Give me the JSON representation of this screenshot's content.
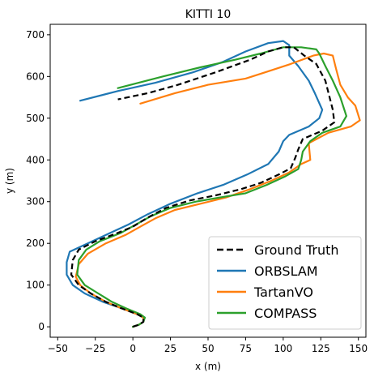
{
  "chart_data": {
    "type": "line",
    "title": "KITTI 10",
    "xlabel": "x (m)",
    "ylabel": "y (m)",
    "xlim": [
      -55,
      155
    ],
    "ylim": [
      -25,
      725
    ],
    "xticks": [
      -50,
      -25,
      0,
      25,
      50,
      75,
      100,
      125,
      150
    ],
    "yticks": [
      0,
      100,
      200,
      300,
      400,
      500,
      600,
      700
    ],
    "xtick_labels": [
      "−50",
      "−25",
      "0",
      "25",
      "50",
      "75",
      "100",
      "125",
      "150"
    ],
    "ytick_labels": [
      "0",
      "100",
      "200",
      "300",
      "400",
      "500",
      "600",
      "700"
    ],
    "grid": false,
    "legend_position": "lower-right",
    "series": [
      {
        "name": "Ground Truth",
        "color": "#000000",
        "style": "dashed",
        "points": [
          [
            0,
            0
          ],
          [
            4,
            5
          ],
          [
            7,
            12
          ],
          [
            7,
            22
          ],
          [
            3,
            30
          ],
          [
            -8,
            45
          ],
          [
            -18,
            60
          ],
          [
            -28,
            80
          ],
          [
            -36,
            100
          ],
          [
            -41,
            125
          ],
          [
            -40,
            160
          ],
          [
            -36,
            185
          ],
          [
            -25,
            205
          ],
          [
            -10,
            225
          ],
          [
            0,
            240
          ],
          [
            10,
            262
          ],
          [
            22,
            285
          ],
          [
            38,
            303
          ],
          [
            55,
            315
          ],
          [
            72,
            330
          ],
          [
            85,
            345
          ],
          [
            97,
            365
          ],
          [
            105,
            380
          ],
          [
            108,
            405
          ],
          [
            110,
            425
          ],
          [
            113,
            450
          ],
          [
            126,
            470
          ],
          [
            134,
            490
          ],
          [
            133,
            520
          ],
          [
            128,
            590
          ],
          [
            122,
            630
          ],
          [
            114,
            650
          ],
          [
            107,
            670
          ],
          [
            100,
            670
          ],
          [
            90,
            660
          ],
          [
            78,
            640
          ],
          [
            55,
            610
          ],
          [
            30,
            580
          ],
          [
            10,
            560
          ],
          [
            -10,
            545
          ]
        ]
      },
      {
        "name": "ORBSLAM",
        "color": "#1f77b4",
        "style": "solid",
        "points": [
          [
            0,
            0
          ],
          [
            4,
            5
          ],
          [
            7,
            12
          ],
          [
            7,
            22
          ],
          [
            3,
            30
          ],
          [
            -8,
            45
          ],
          [
            -20,
            60
          ],
          [
            -32,
            80
          ],
          [
            -40,
            100
          ],
          [
            -44,
            125
          ],
          [
            -44,
            155
          ],
          [
            -42,
            180
          ],
          [
            -30,
            200
          ],
          [
            -15,
            225
          ],
          [
            -3,
            245
          ],
          [
            10,
            270
          ],
          [
            25,
            295
          ],
          [
            43,
            320
          ],
          [
            60,
            340
          ],
          [
            76,
            365
          ],
          [
            90,
            390
          ],
          [
            97,
            420
          ],
          [
            100,
            445
          ],
          [
            104,
            460
          ],
          [
            117,
            480
          ],
          [
            124,
            500
          ],
          [
            126,
            520
          ],
          [
            121,
            560
          ],
          [
            117,
            590
          ],
          [
            110,
            625
          ],
          [
            104,
            650
          ],
          [
            104,
            675
          ],
          [
            100,
            685
          ],
          [
            90,
            680
          ],
          [
            75,
            660
          ],
          [
            60,
            635
          ],
          [
            40,
            610
          ],
          [
            15,
            585
          ],
          [
            -10,
            565
          ],
          [
            -35,
            542
          ]
        ]
      },
      {
        "name": "TartanVO",
        "color": "#ff7f0e",
        "style": "solid",
        "points": [
          [
            0,
            0
          ],
          [
            4,
            5
          ],
          [
            7,
            12
          ],
          [
            7,
            22
          ],
          [
            3,
            30
          ],
          [
            -8,
            45
          ],
          [
            -18,
            60
          ],
          [
            -28,
            80
          ],
          [
            -35,
            100
          ],
          [
            -38,
            120
          ],
          [
            -36,
            150
          ],
          [
            -30,
            175
          ],
          [
            -18,
            200
          ],
          [
            -5,
            220
          ],
          [
            5,
            240
          ],
          [
            15,
            260
          ],
          [
            28,
            280
          ],
          [
            45,
            295
          ],
          [
            62,
            310
          ],
          [
            78,
            330
          ],
          [
            92,
            350
          ],
          [
            104,
            370
          ],
          [
            112,
            390
          ],
          [
            118,
            400
          ],
          [
            117,
            440
          ],
          [
            130,
            465
          ],
          [
            145,
            480
          ],
          [
            151,
            495
          ],
          [
            148,
            530
          ],
          [
            143,
            550
          ],
          [
            138,
            580
          ],
          [
            135,
            620
          ],
          [
            133,
            650
          ],
          [
            127,
            655
          ],
          [
            120,
            650
          ],
          [
            105,
            630
          ],
          [
            88,
            610
          ],
          [
            75,
            595
          ],
          [
            50,
            580
          ],
          [
            28,
            560
          ],
          [
            5,
            535
          ]
        ]
      },
      {
        "name": "COMPASS",
        "color": "#2ca02c",
        "style": "solid",
        "points": [
          [
            0,
            0
          ],
          [
            4,
            5
          ],
          [
            7,
            12
          ],
          [
            8,
            22
          ],
          [
            5,
            30
          ],
          [
            -5,
            45
          ],
          [
            -14,
            60
          ],
          [
            -23,
            80
          ],
          [
            -32,
            100
          ],
          [
            -37,
            125
          ],
          [
            -36,
            160
          ],
          [
            -31,
            185
          ],
          [
            -22,
            205
          ],
          [
            -8,
            225
          ],
          [
            2,
            245
          ],
          [
            12,
            265
          ],
          [
            25,
            285
          ],
          [
            42,
            300
          ],
          [
            58,
            310
          ],
          [
            75,
            320
          ],
          [
            89,
            340
          ],
          [
            101,
            360
          ],
          [
            110,
            378
          ],
          [
            112,
            400
          ],
          [
            113,
            420
          ],
          [
            118,
            445
          ],
          [
            126,
            465
          ],
          [
            138,
            480
          ],
          [
            142,
            505
          ],
          [
            138,
            550
          ],
          [
            133,
            590
          ],
          [
            128,
            625
          ],
          [
            124,
            655
          ],
          [
            122,
            665
          ],
          [
            112,
            670
          ],
          [
            100,
            670
          ],
          [
            85,
            655
          ],
          [
            68,
            640
          ],
          [
            45,
            622
          ],
          [
            20,
            600
          ],
          [
            -10,
            572
          ]
        ]
      }
    ]
  }
}
